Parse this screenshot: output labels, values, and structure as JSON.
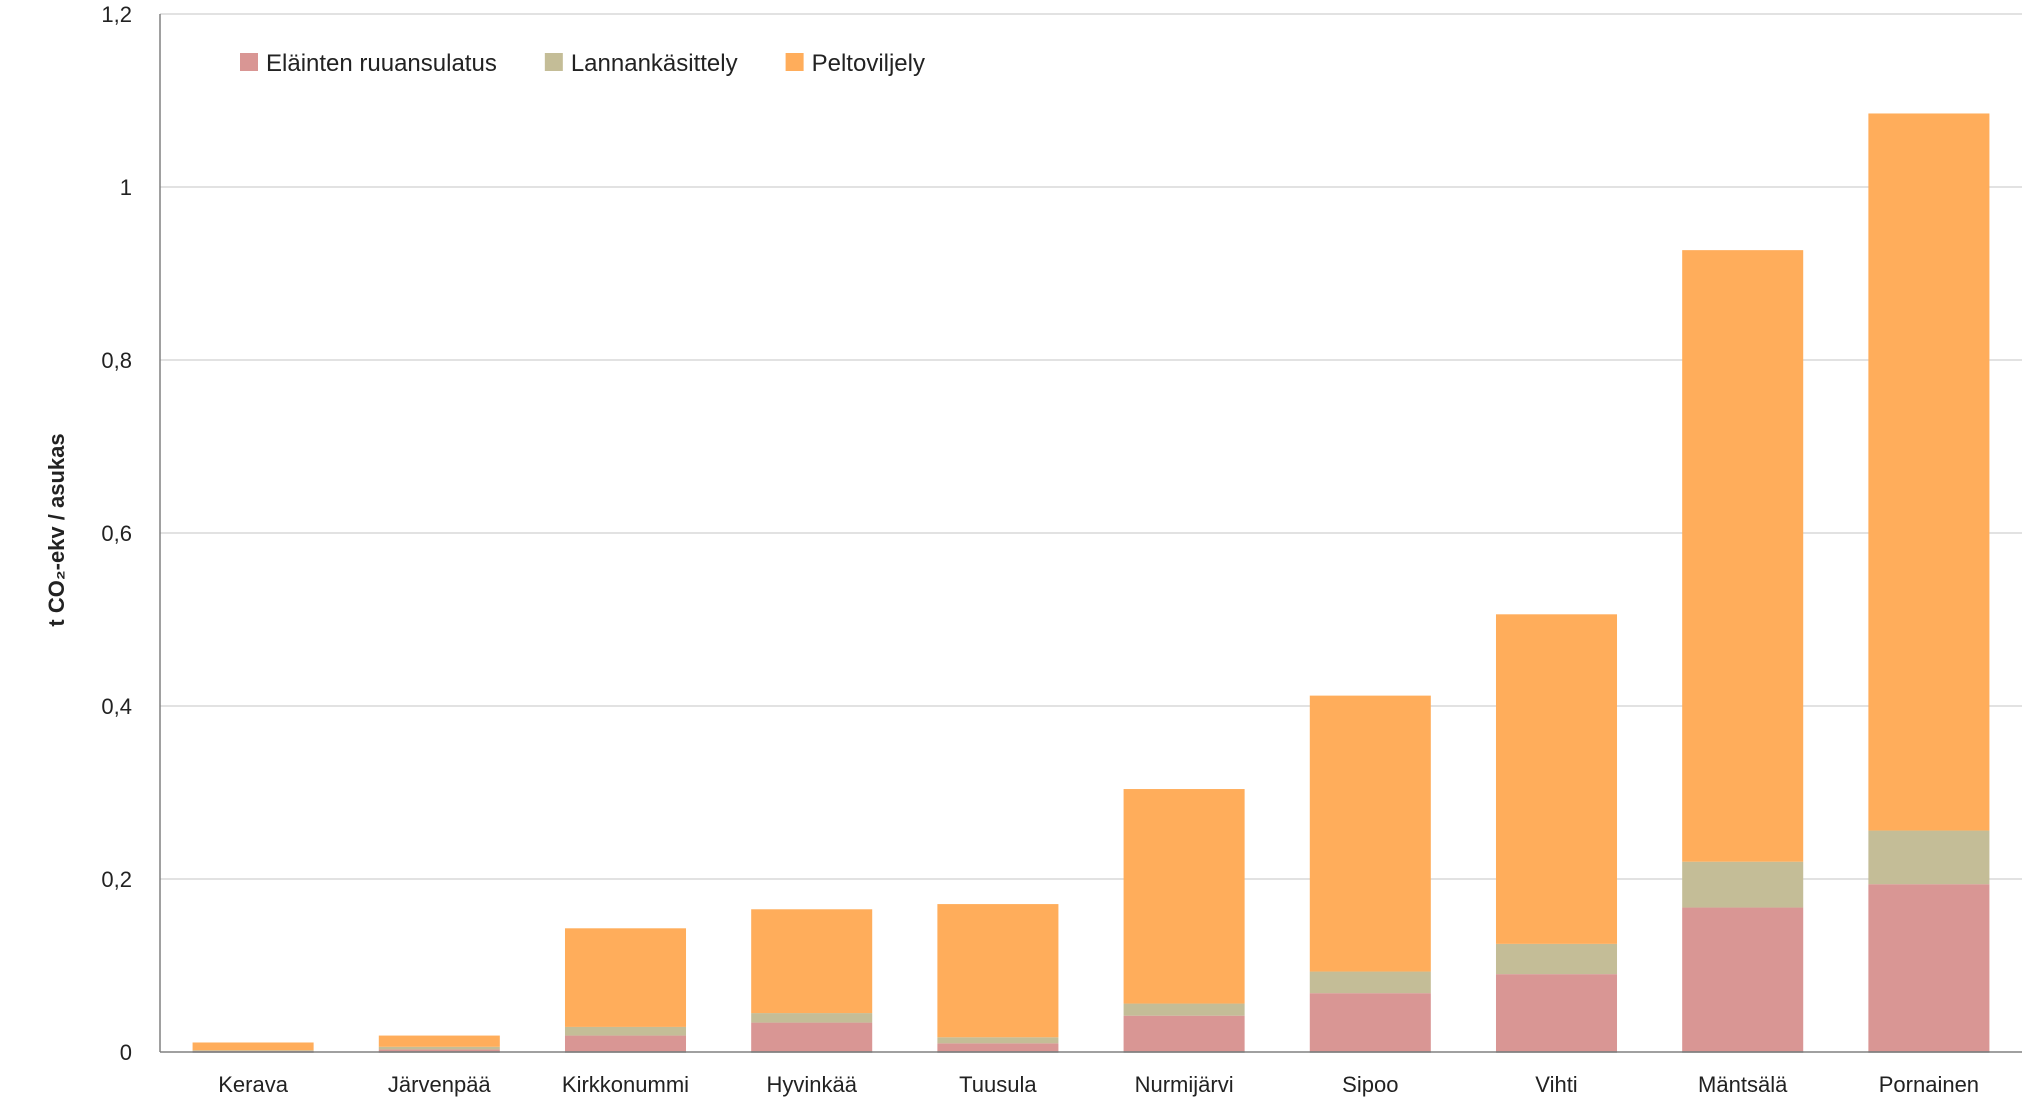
{
  "chart_data": {
    "type": "bar",
    "stacked": true,
    "title": "",
    "ylabel": "t CO₂-ekv / asukas",
    "xlabel": "",
    "ylim": [
      0,
      1.2
    ],
    "yticks": [
      0,
      0.2,
      0.4,
      0.6,
      0.8,
      1,
      1.2
    ],
    "ytick_labels": [
      "0",
      "0,2",
      "0,4",
      "0,6",
      "0,8",
      "1",
      "1,2"
    ],
    "categories": [
      "Kerava",
      "Järvenpää",
      "Kirkkonummi",
      "Hyvinkää",
      "Tuusula",
      "Nurmijärvi",
      "Sipoo",
      "Vihti",
      "Mäntsälä",
      "Pornainen"
    ],
    "series": [
      {
        "name": "Eläinten ruuansulatus",
        "color": "#d99694",
        "values": [
          0.001,
          0.003,
          0.019,
          0.034,
          0.01,
          0.042,
          0.068,
          0.09,
          0.167,
          0.194
        ]
      },
      {
        "name": "Lannankäsittely",
        "color": "#c4bd97",
        "values": [
          0.001,
          0.003,
          0.01,
          0.011,
          0.007,
          0.014,
          0.025,
          0.035,
          0.053,
          0.062
        ]
      },
      {
        "name": "Peltoviljely",
        "color": "#ffad5b",
        "values": [
          0.009,
          0.013,
          0.114,
          0.12,
          0.154,
          0.248,
          0.319,
          0.381,
          0.707,
          0.829
        ]
      }
    ],
    "grid": true,
    "legend_position": "top-left"
  }
}
